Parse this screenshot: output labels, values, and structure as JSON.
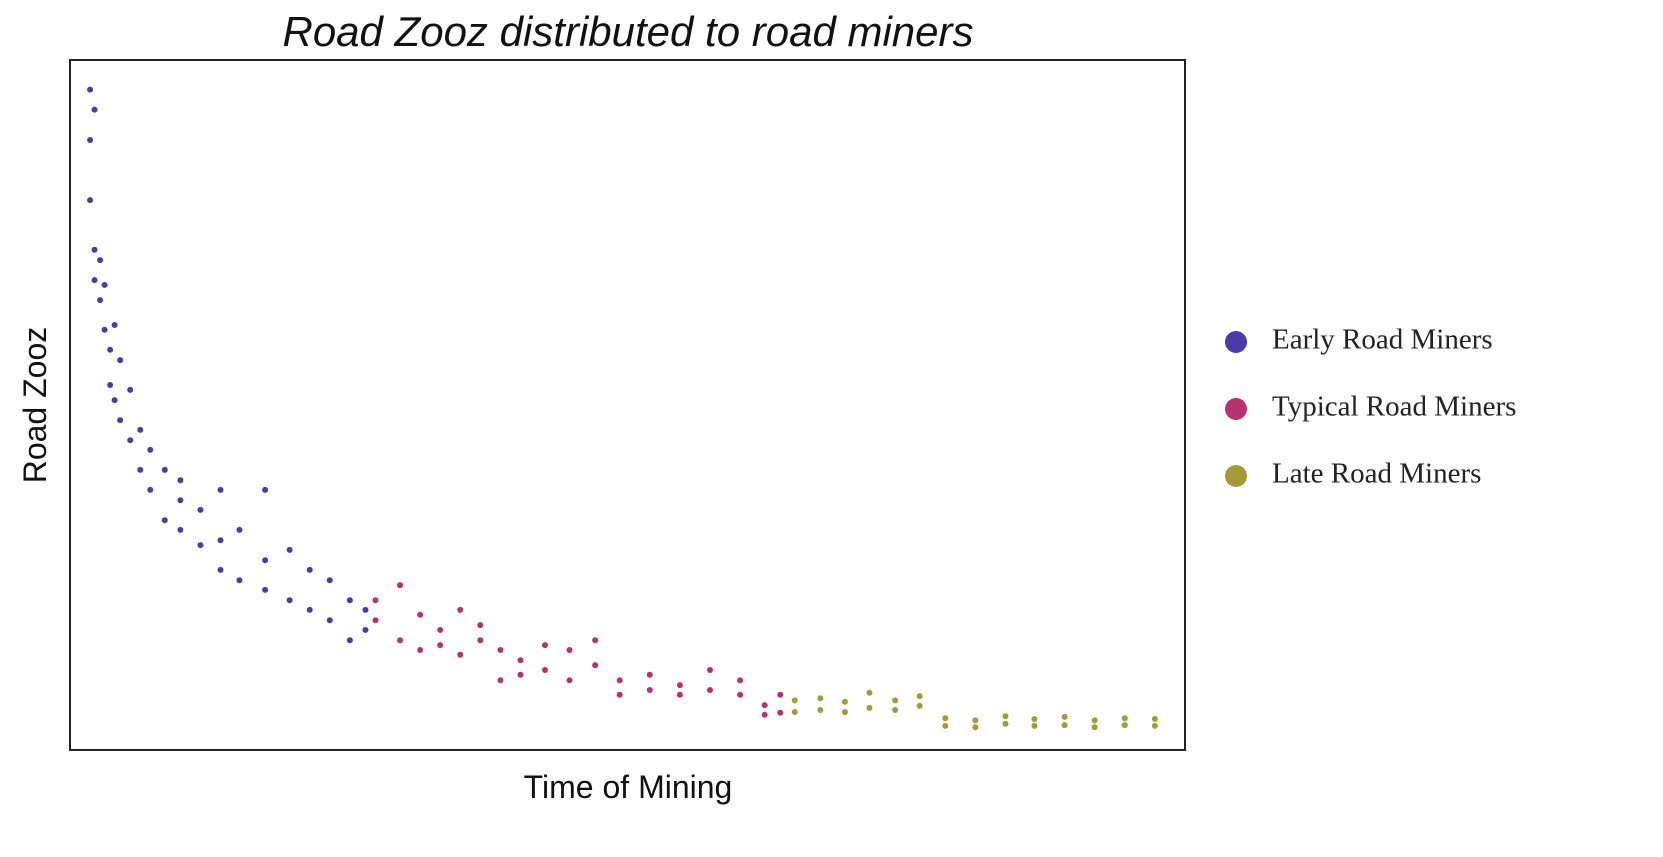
{
  "chart_data": {
    "type": "scatter",
    "title": "Road Zooz distributed to road miners",
    "x_label": "Time of Mining",
    "y_label": "Road Zooz",
    "xlim": [
      0,
      100
    ],
    "ylim": [
      0,
      100
    ],
    "legend": "right",
    "series": [
      {
        "name": "Early Road Miners",
        "color": "#4b3aa8",
        "x": [
          1.8,
          1.8,
          1.8,
          2.2,
          2.2,
          2.2,
          2.7,
          2.7,
          3.1,
          3.1,
          3.6,
          3.6,
          4.0,
          4.0,
          4.5,
          4.5,
          5.4,
          5.4,
          6.3,
          6.3,
          7.2,
          7.2,
          8.5,
          8.5,
          9.9,
          9.9,
          9.9,
          11.7,
          11.7,
          13.5,
          13.5,
          13.5,
          15.2,
          15.2,
          17.5,
          17.5,
          17.5,
          19.7,
          19.7,
          21.5,
          21.5,
          23.3,
          23.3,
          25.1,
          25.1,
          26.5,
          26.5
        ],
        "values": [
          95.7,
          88.4,
          79.7,
          92.8,
          72.5,
          68.1,
          71,
          65.2,
          67.4,
          60.9,
          58,
          52.9,
          61.6,
          50.7,
          56.5,
          47.8,
          52.2,
          44.9,
          46.4,
          40.6,
          43.5,
          37.7,
          40.6,
          33.3,
          39.1,
          31.9,
          36.2,
          34.8,
          29.7,
          37.7,
          30.4,
          26.1,
          31.9,
          24.6,
          37.7,
          27.5,
          23.2,
          29,
          21.7,
          26.1,
          20.3,
          24.6,
          18.8,
          21.7,
          15.9,
          20.3,
          17.4
        ]
      },
      {
        "name": "Typical Road Miners",
        "color": "#b8306e",
        "x": [
          27.4,
          27.4,
          29.6,
          29.6,
          31.4,
          31.4,
          33.2,
          33.2,
          35,
          35,
          36.8,
          36.8,
          38.6,
          38.6,
          40.4,
          40.4,
          42.6,
          42.6,
          44.8,
          44.8,
          47.1,
          47.1,
          49.3,
          49.3,
          52,
          52,
          54.7,
          54.7,
          57.4,
          57.4,
          60.1,
          60.1,
          62.3,
          62.3,
          63.7,
          63.7
        ],
        "values": [
          21.7,
          18.8,
          23.9,
          15.9,
          19.6,
          14.5,
          17.4,
          15.2,
          20.3,
          13.8,
          18.1,
          15.9,
          14.5,
          10.1,
          13,
          10.9,
          15.2,
          11.6,
          14.5,
          10.1,
          15.9,
          12.3,
          10.1,
          8,
          10.9,
          8.7,
          9.4,
          8,
          11.6,
          8.7,
          10.1,
          8,
          6.5,
          5.1,
          8,
          5.4
        ]
      },
      {
        "name": "Late Road Miners",
        "color": "#a49a3a",
        "x": [
          65,
          65,
          67.3,
          67.3,
          69.5,
          69.5,
          71.7,
          71.7,
          74,
          74,
          76.2,
          76.2,
          78.5,
          78.5,
          81.2,
          81.2,
          83.9,
          83.9,
          86.5,
          86.5,
          89.2,
          89.2,
          91.9,
          91.9,
          94.6,
          94.6,
          97.3,
          97.3
        ],
        "values": [
          7.2,
          5.5,
          7.5,
          5.8,
          7,
          5.5,
          8.3,
          6.1,
          7.2,
          5.8,
          7.8,
          6.4,
          4.6,
          3.5,
          4.3,
          3.3,
          4.9,
          3.8,
          4.5,
          3.5,
          4.8,
          3.6,
          4.3,
          3.3,
          4.6,
          3.6,
          4.5,
          3.5
        ]
      }
    ]
  }
}
